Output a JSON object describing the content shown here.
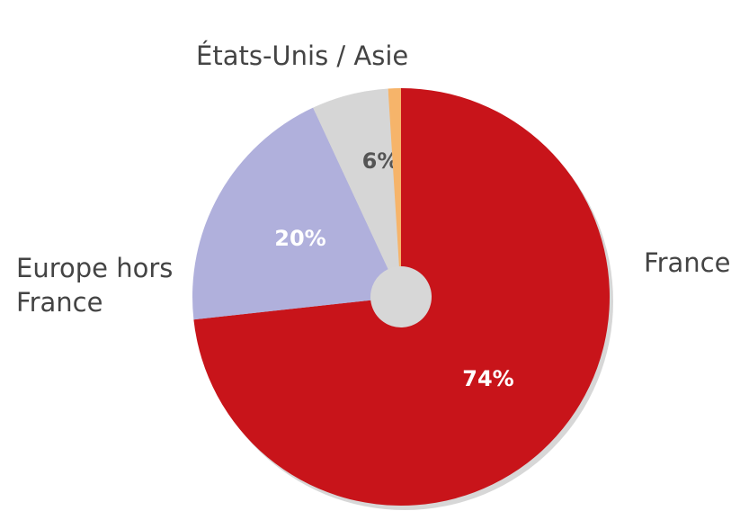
{
  "chart_data": {
    "type": "pie",
    "categories": [
      "France",
      "Europe hors France",
      "États-Unis / Asie",
      null
    ],
    "values": [
      74,
      20,
      6,
      1
    ],
    "value_labels": [
      "74%",
      "20%",
      "6%",
      null
    ],
    "colors": [
      "#c8141a",
      "#b0b0dc",
      "#d6d6d6",
      "#f6b46a"
    ]
  }
}
